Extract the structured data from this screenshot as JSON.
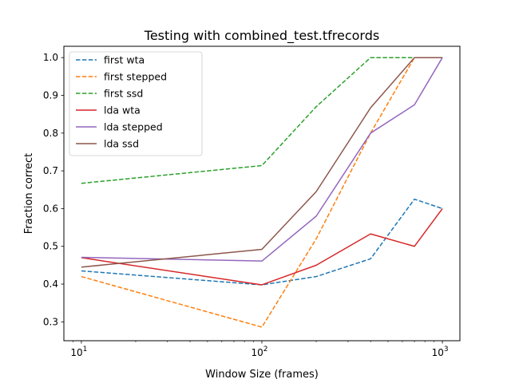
{
  "chart_data": {
    "type": "line",
    "title": "Testing with combined_test.tfrecords",
    "xlabel": "Window Size (frames)",
    "ylabel": "Fraction correct",
    "xscale": "log",
    "xlim": [
      8,
      1250
    ],
    "ylim": [
      0.25,
      1.03
    ],
    "x": [
      10,
      100,
      200,
      400,
      700,
      1000
    ],
    "xticks": [
      {
        "value": 10,
        "base": "10",
        "exp": "1"
      },
      {
        "value": 100,
        "base": "10",
        "exp": "2"
      },
      {
        "value": 1000,
        "base": "10",
        "exp": "3"
      }
    ],
    "yticks": [
      {
        "value": 0.3,
        "label": "0.3"
      },
      {
        "value": 0.4,
        "label": "0.4"
      },
      {
        "value": 0.5,
        "label": "0.5"
      },
      {
        "value": 0.6,
        "label": "0.6"
      },
      {
        "value": 0.7,
        "label": "0.7"
      },
      {
        "value": 0.8,
        "label": "0.8"
      },
      {
        "value": 0.9,
        "label": "0.9"
      },
      {
        "value": 1.0,
        "label": "1.0"
      }
    ],
    "grid": false,
    "legend_position": "top-left",
    "series": [
      {
        "name": "first wta",
        "color": "#1f77b4",
        "style": "dashed",
        "values": [
          0.435,
          0.398,
          0.42,
          0.467,
          0.625,
          0.6
        ]
      },
      {
        "name": "first stepped",
        "color": "#ff7f0e",
        "style": "dashed",
        "values": [
          0.42,
          0.286,
          0.52,
          0.8,
          1.0,
          1.0
        ]
      },
      {
        "name": "first ssd",
        "color": "#2ca02c",
        "style": "dashed",
        "values": [
          0.667,
          0.714,
          0.87,
          1.0,
          1.0,
          1.0
        ]
      },
      {
        "name": "lda wta",
        "color": "#d62728",
        "style": "solid",
        "values": [
          0.47,
          0.398,
          0.45,
          0.533,
          0.5,
          0.6
        ]
      },
      {
        "name": "lda stepped",
        "color": "#9467bd",
        "style": "solid",
        "values": [
          0.471,
          0.461,
          0.58,
          0.8,
          0.875,
          1.0
        ]
      },
      {
        "name": "lda ssd",
        "color": "#8c564b",
        "style": "solid",
        "values": [
          0.445,
          0.492,
          0.645,
          0.867,
          1.0,
          1.0
        ]
      }
    ]
  }
}
